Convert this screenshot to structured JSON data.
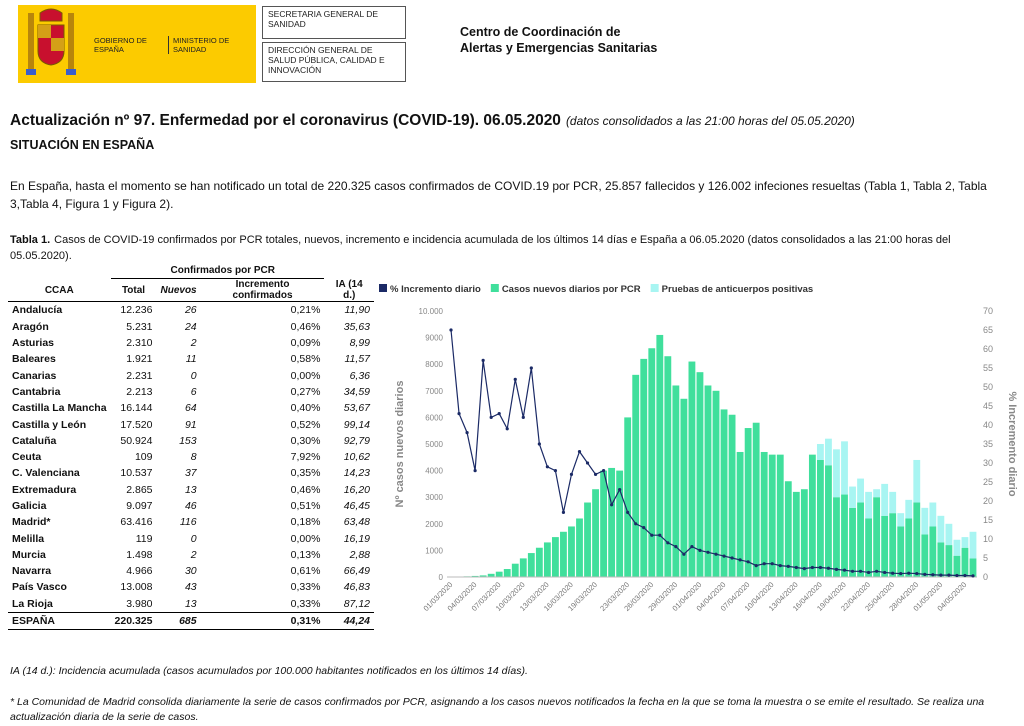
{
  "header": {
    "gobierno": "GOBIERNO DE ESPAÑA",
    "ministerio": "MINISTERIO DE SANIDAD",
    "secretaria": "SECRETARIA GENERAL DE SANIDAD",
    "direccion": "DIRECCIÓN GENERAL DE SALUD PÚBLICA, CALIDAD E INNOVACIÓN",
    "centro": "Centro de Coordinación de Alertas y Emergencias Sanitarias"
  },
  "title": "Actualización nº 97. Enfermedad por el coronavirus (COVID-19). 06.05.2020",
  "title_note": "(datos consolidados a las 21:00 horas del 05.05.2020)",
  "section": "SITUACIÓN EN ESPAÑA",
  "paragraph": "En España, hasta el momento se han notificado un total de 220.325 casos confirmados de COVID.19 por PCR, 25.857 fallecidos y 126.002 infeciones resueltas (Tabla 1, Tabla 2, Tabla 3,Tabla 4, Figura 1 y Figura 2).",
  "table": {
    "caption_label": "Tabla 1.",
    "caption": "Casos de COVID-19 confirmados por PCR totales, nuevos, incremento e incidencia acumulada de los últimos 14 días e España a 06.05.2020 (datos consolidados a las 21:00 horas del 05.05.2020).",
    "group_header": "Confirmados por PCR",
    "columns": [
      "CCAA",
      "Total",
      "Nuevos",
      "Incremento confirmados",
      "IA (14 d.)"
    ],
    "rows": [
      [
        "Andalucía",
        "12.236",
        "26",
        "0,21%",
        "11,90"
      ],
      [
        "Aragón",
        "5.231",
        "24",
        "0,46%",
        "35,63"
      ],
      [
        "Asturias",
        "2.310",
        "2",
        "0,09%",
        "8,99"
      ],
      [
        "Baleares",
        "1.921",
        "11",
        "0,58%",
        "11,57"
      ],
      [
        "Canarias",
        "2.231",
        "0",
        "0,00%",
        "6,36"
      ],
      [
        "Cantabria",
        "2.213",
        "6",
        "0,27%",
        "34,59"
      ],
      [
        "Castilla La Mancha",
        "16.144",
        "64",
        "0,40%",
        "53,67"
      ],
      [
        "Castilla y León",
        "17.520",
        "91",
        "0,52%",
        "99,14"
      ],
      [
        "Cataluña",
        "50.924",
        "153",
        "0,30%",
        "92,79"
      ],
      [
        "Ceuta",
        "109",
        "8",
        "7,92%",
        "10,62"
      ],
      [
        "C. Valenciana",
        "10.537",
        "37",
        "0,35%",
        "14,23"
      ],
      [
        "Extremadura",
        "2.865",
        "13",
        "0,46%",
        "16,20"
      ],
      [
        "Galicia",
        "9.097",
        "46",
        "0,51%",
        "46,45"
      ],
      [
        "Madrid*",
        "63.416",
        "116",
        "0,18%",
        "63,48"
      ],
      [
        "Melilla",
        "119",
        "0",
        "0,00%",
        "16,19"
      ],
      [
        "Murcia",
        "1.498",
        "2",
        "0,13%",
        "2,88"
      ],
      [
        "Navarra",
        "4.966",
        "30",
        "0,61%",
        "66,49"
      ],
      [
        "País Vasco",
        "13.008",
        "43",
        "0,33%",
        "46,83"
      ],
      [
        "La Rioja",
        "3.980",
        "13",
        "0,33%",
        "87,12"
      ],
      [
        "ESPAÑA",
        "220.325",
        "685",
        "0,31%",
        "44,24"
      ]
    ]
  },
  "chart_data": {
    "type": "bar",
    "stacked": true,
    "legend": "top",
    "categories": [
      "01/03/2020",
      null,
      null,
      "04/03/2020",
      null,
      null,
      "07/03/2020",
      null,
      null,
      "10/03/2020",
      null,
      null,
      "13/03/2020",
      null,
      null,
      "16/03/2020",
      null,
      null,
      "19/03/2020",
      null,
      null,
      null,
      "23/03/2020",
      null,
      null,
      "26/03/2020",
      null,
      null,
      "29/03/2020",
      null,
      null,
      "01/04/2020",
      null,
      null,
      "04/04/2020",
      null,
      null,
      "07/04/2020",
      null,
      null,
      "10/04/2020",
      null,
      null,
      "13/04/2020",
      null,
      null,
      "16/04/2020",
      null,
      null,
      "19/04/2020",
      null,
      null,
      "22/04/2020",
      null,
      null,
      "25/04/2020",
      null,
      null,
      "28/04/2020",
      null,
      null,
      "01/05/2020",
      null,
      null,
      "04/05/2020",
      null
    ],
    "series": [
      {
        "name": "% Incremento diario",
        "type": "line",
        "axis": "y2",
        "color": "#1b2a66",
        "values": [
          65,
          43,
          38,
          28,
          57,
          42,
          43,
          39,
          52,
          42,
          55,
          35,
          29,
          28,
          17,
          27,
          33,
          30,
          27,
          28,
          19,
          23,
          17,
          14,
          13,
          11,
          11,
          9,
          8,
          6,
          8,
          7,
          6.5,
          6,
          5.5,
          5,
          4.5,
          4,
          3,
          3.5,
          3.5,
          3,
          2.8,
          2.5,
          2.2,
          2.5,
          2.5,
          2.3,
          2,
          1.8,
          1.5,
          1.5,
          1.2,
          1.5,
          1.2,
          1,
          0.9,
          1,
          0.9,
          0.7,
          0.6,
          0.5,
          0.5,
          0.4,
          0.4,
          0.3
        ]
      },
      {
        "name": "Casos nuevos diarios por PCR",
        "color": "#40df9c",
        "values": [
          10,
          15,
          25,
          40,
          60,
          120,
          200,
          300,
          500,
          700,
          900,
          1100,
          1300,
          1500,
          1700,
          1900,
          2200,
          2800,
          3300,
          4000,
          4100,
          4000,
          6000,
          7600,
          8200,
          8600,
          9100,
          8300,
          7200,
          6700,
          8100,
          7700,
          7200,
          7000,
          6300,
          6100,
          4700,
          5600,
          5800,
          4700,
          4600,
          4600,
          3600,
          3200,
          3300,
          4600,
          4400,
          4200,
          3000,
          3100,
          2600,
          2800,
          2200,
          3000,
          2300,
          2400,
          1900,
          2200,
          2800,
          1600,
          1900,
          1300,
          1200,
          800,
          1100,
          700
        ]
      },
      {
        "name": "Pruebas de anticuerpos positivas",
        "color": "#a8f5f2",
        "values": [
          null,
          null,
          null,
          null,
          null,
          null,
          null,
          null,
          null,
          null,
          null,
          null,
          null,
          null,
          null,
          null,
          null,
          null,
          null,
          null,
          null,
          null,
          null,
          null,
          null,
          null,
          null,
          null,
          null,
          null,
          null,
          null,
          null,
          null,
          null,
          null,
          null,
          null,
          null,
          null,
          null,
          null,
          null,
          null,
          null,
          null,
          600,
          1000,
          1800,
          2000,
          800,
          900,
          1000,
          300,
          1200,
          800,
          500,
          700,
          1600,
          1000,
          900,
          1000,
          800,
          600,
          400,
          1000
        ]
      }
    ],
    "ylabel": "Nº casos nuevos diarios",
    "y2label": "% Incremento diario",
    "ylim": [
      0,
      10000
    ],
    "yticks": [
      0,
      1000,
      2000,
      3000,
      4000,
      5000,
      6000,
      7000,
      8000,
      9000,
      {
        "value": 10000,
        "label": "10.000"
      }
    ],
    "y2lim": [
      0,
      70
    ],
    "y2ticks": [
      0,
      5,
      10,
      15,
      20,
      25,
      30,
      35,
      40,
      45,
      50,
      55,
      60,
      65,
      70
    ],
    "grid": false
  },
  "footnotes": [
    "IA (14 d.): Incidencia acumulada (casos acumulados por 100.000 habitantes notificados en los últimos 14 días).",
    "* La Comunidad de Madrid consolida diariamente la serie de casos confirmados por PCR, asignando a los casos nuevos notificados la fecha en la que se toma la muestra o se emite el resultado. Se realiza una actualización diaria de la serie de casos."
  ]
}
